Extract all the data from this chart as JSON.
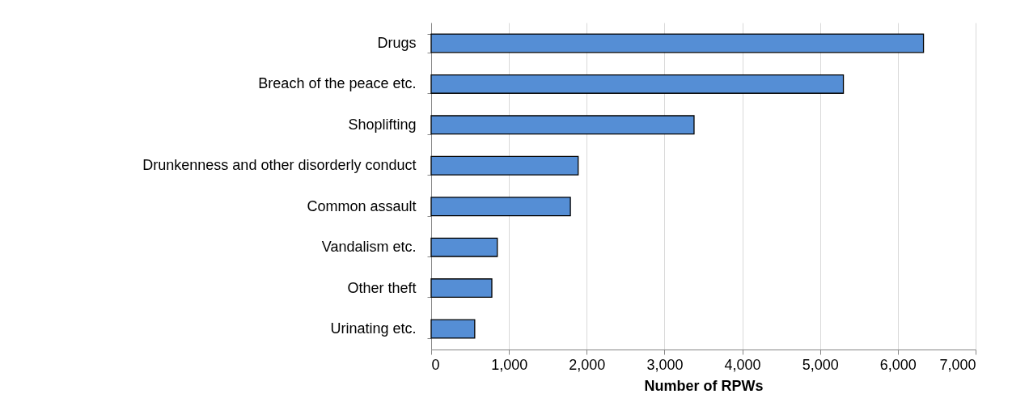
{
  "chart_data": {
    "type": "bar",
    "orientation": "horizontal",
    "xlabel": "Number of RPWs",
    "categories": [
      "Drugs ",
      "Breach of the peace etc. ",
      "Shoplifting",
      "Drunkenness and other disorderly conduct",
      "Common assault ",
      "Vandalism etc. ",
      "Other theft",
      "Urinating etc."
    ],
    "values": [
      6330,
      5300,
      3380,
      1890,
      1790,
      850,
      780,
      560
    ],
    "color": "#558ed5",
    "xlim": [
      0,
      7000
    ],
    "xticks": [
      0,
      {
        "value": 1000,
        "label": "1,000"
      },
      {
        "value": 2000,
        "label": "2,000"
      },
      {
        "value": 3000,
        "label": "3,000"
      },
      {
        "value": 4000,
        "label": "4,000"
      },
      {
        "value": 5000,
        "label": "5,000"
      },
      {
        "value": 6000,
        "label": "6,000"
      },
      {
        "value": 7000,
        "label": "7,000"
      }
    ],
    "grid": "x"
  }
}
